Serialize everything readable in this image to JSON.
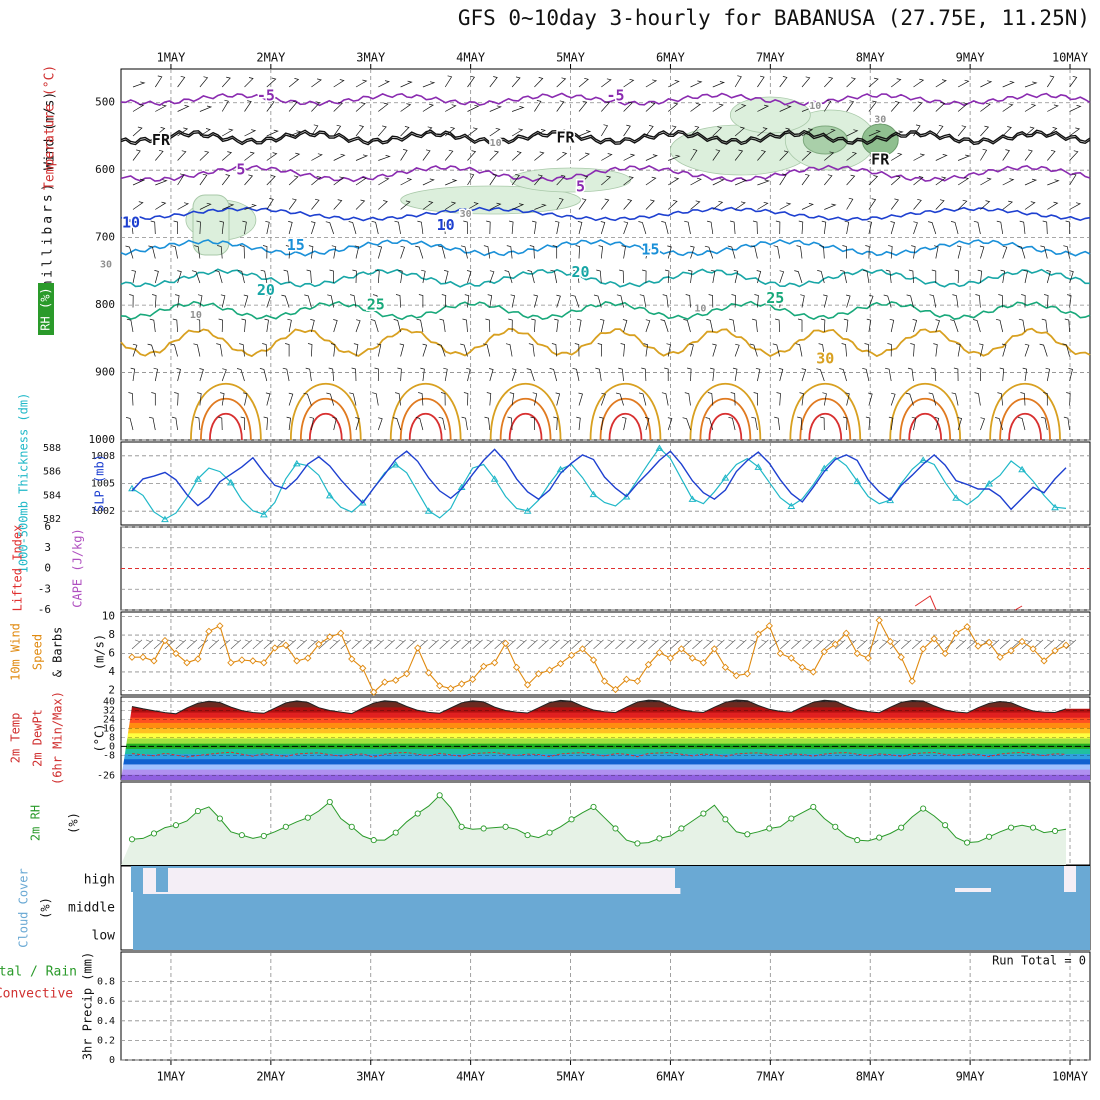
{
  "title": "GFS 0~10day 3-hourly for BABANUSA (27.75E, 11.25N)",
  "colors": {
    "temp_pos": "#d03030",
    "temp_neg": "#8a2bb0",
    "freezing": "#111111",
    "rh": "#2a9a2a",
    "slp": "#1e40d0",
    "thickness": "#20b8c8",
    "wind": "#e08a10",
    "cape": "#b050c0",
    "lifted": "#e03030",
    "cloud": "#6aa9d4",
    "grid": "#8a8a8a"
  },
  "chart_data": [
    {
      "type": "line",
      "name": "upper-air",
      "ylabel_rh": "RH (%)",
      "ylabel_temp": "Temperature (°C)",
      "ylabel_wind": "Wind (m/s)",
      "ylabel_units": "(millibars)",
      "yticks": [
        "500",
        "600",
        "700",
        "800",
        "900",
        "1000"
      ],
      "yrange": [
        450,
        1000
      ],
      "isotherm_labels": [
        {
          "text": "-5",
          "day": 1.95,
          "p": 490,
          "color": "#8a2bb0"
        },
        {
          "text": "-5",
          "day": 5.45,
          "p": 490,
          "color": "#8a2bb0"
        },
        {
          "text": "FR",
          "day": 0.9,
          "p": 556,
          "color": "#111111"
        },
        {
          "text": "FR",
          "day": 4.95,
          "p": 552,
          "color": "#111111"
        },
        {
          "text": "FR",
          "day": 8.1,
          "p": 585,
          "color": "#111111"
        },
        {
          "text": "5",
          "day": 1.7,
          "p": 600,
          "color": "#8a2bb0"
        },
        {
          "text": "5",
          "day": 5.1,
          "p": 625,
          "color": "#8a2bb0"
        },
        {
          "text": "10",
          "day": 0.6,
          "p": 678,
          "color": "#1e40d0"
        },
        {
          "text": "10",
          "day": 3.75,
          "p": 682,
          "color": "#1e40d0"
        },
        {
          "text": "15",
          "day": 2.25,
          "p": 712,
          "color": "#1a90d8"
        },
        {
          "text": "15",
          "day": 5.8,
          "p": 718,
          "color": "#1a90d8"
        },
        {
          "text": "20",
          "day": 1.95,
          "p": 778,
          "color": "#18a6a6"
        },
        {
          "text": "20",
          "day": 5.1,
          "p": 752,
          "color": "#18a6a6"
        },
        {
          "text": "25",
          "day": 3.05,
          "p": 800,
          "color": "#18a87a"
        },
        {
          "text": "25",
          "day": 7.05,
          "p": 790,
          "color": "#18a87a"
        },
        {
          "text": "30",
          "day": 7.55,
          "p": 880,
          "color": "#d8a020"
        },
        {
          "text": "10",
          "day": 1.25,
          "p": 815,
          "color": "#909090"
        },
        {
          "text": "10",
          "day": 6.3,
          "p": 805,
          "color": "#909090"
        },
        {
          "text": "30",
          "day": 0.35,
          "p": 740,
          "color": "#909090"
        },
        {
          "text": "30",
          "day": 3.95,
          "p": 665,
          "color": "#909090"
        },
        {
          "text": "30",
          "day": 8.1,
          "p": 525,
          "color": "#909090"
        },
        {
          "text": "10",
          "day": 7.45,
          "p": 505,
          "color": "#909090"
        },
        {
          "text": "10",
          "day": 4.25,
          "p": 560,
          "color": "#909090"
        }
      ]
    },
    {
      "type": "line",
      "name": "slp-thickness",
      "ylabel_thickness": "1000-500mb Thickness (dm)",
      "ylabel_slp": "SLP (mb)",
      "thickness_ticks": [
        "588",
        "586",
        "584",
        "582"
      ],
      "slp_ticks": [
        "1008",
        "1005",
        "1002"
      ],
      "thickness_range": [
        581.5,
        588.5
      ],
      "slp_range": [
        1000.5,
        1009.5
      ],
      "slp": [
        1004.2,
        1005.5,
        1005.8,
        1006.2,
        1005.4,
        1003.8,
        1002.6,
        1003.5,
        1005.2,
        1006.0,
        1006.8,
        1007.8,
        1006.2,
        1004.8,
        1004.4,
        1005.5,
        1007.1,
        1007.9,
        1006.9,
        1005.4,
        1004.1,
        1002.9,
        1004.5,
        1006.0,
        1007.6,
        1008.5,
        1007.4,
        1005.6,
        1004.2,
        1003.4,
        1004.4,
        1006.0,
        1007.5,
        1008.7,
        1007.4,
        1005.5,
        1004.1,
        1003.3,
        1004.3,
        1006.1,
        1007.2,
        1008.1,
        1007.6,
        1005.7,
        1004.5,
        1003.6,
        1005.0,
        1006.2,
        1007.5,
        1008.5,
        1007.1,
        1005.3,
        1004.0,
        1003.3,
        1004.3,
        1006.3,
        1007.5,
        1008.4,
        1007.2,
        1005.4,
        1003.9,
        1003.0,
        1004.6,
        1006.3,
        1007.6,
        1008.1,
        1007.5,
        1005.4,
        1004.1,
        1003.2,
        1004.8,
        1005.9,
        1007.1,
        1008.1,
        1007.0,
        1005.3,
        1004.9,
        1004.4,
        1004.4,
        1003.6,
        1002.2,
        1003.4,
        1004.6,
        1004.0,
        1005.5,
        1006.7
      ],
      "thickness": [
        584.6,
        584.0,
        582.6,
        582.0,
        582.5,
        583.8,
        585.4,
        586.3,
        586.0,
        585.1,
        583.6,
        582.7,
        582.4,
        583.4,
        585.4,
        586.7,
        586.5,
        585.7,
        584.0,
        583.0,
        582.6,
        583.4,
        584.6,
        585.9,
        586.6,
        585.9,
        584.3,
        582.7,
        582.1,
        582.9,
        584.7,
        586.3,
        586.6,
        585.4,
        583.9,
        582.9,
        582.7,
        583.6,
        585.0,
        586.2,
        586.6,
        585.5,
        584.1,
        583.4,
        583.1,
        583.9,
        585.3,
        586.7,
        588.0,
        587.1,
        585.4,
        583.7,
        583.3,
        584.3,
        585.5,
        586.6,
        587.1,
        586.4,
        585.1,
        583.8,
        583.1,
        583.7,
        584.9,
        586.3,
        587.2,
        586.5,
        585.2,
        583.9,
        583.3,
        583.6,
        585.0,
        586.2,
        587.0,
        586.6,
        585.1,
        583.8,
        583.2,
        583.9,
        585.0,
        585.7,
        586.9,
        586.2,
        585.2,
        584.0,
        583.0,
        582.9
      ]
    },
    {
      "type": "line",
      "name": "lifted-cape",
      "ylabel_lifted": "Lifted Index",
      "ylabel_cape": "CAPE (J/kg)",
      "yticks": [
        "6",
        "3",
        "0",
        "-3",
        "-6"
      ],
      "cape_trace_days": [
        8.45,
        8.6
      ],
      "cape_trace_days_2": [
        9.45,
        9.52
      ]
    },
    {
      "type": "line",
      "name": "10m-wind",
      "ylabel_wind": "10m Wind",
      "ylabel_speed": "Speed",
      "ylabel_barbs": "& Barbs",
      "ylabel_units": "(m/s)",
      "yticks": [
        "10",
        "8",
        "6",
        "4",
        "2"
      ],
      "yrange": [
        1.5,
        10.5
      ],
      "speed": [
        5.6,
        5.6,
        5.2,
        7.4,
        6.0,
        5.0,
        5.4,
        8.4,
        9.0,
        5.0,
        5.3,
        5.2,
        5.0,
        6.6,
        6.9,
        5.2,
        5.5,
        7.0,
        7.8,
        8.2,
        5.4,
        4.4,
        1.8,
        2.9,
        3.1,
        3.8,
        6.6,
        3.9,
        2.5,
        2.2,
        2.7,
        3.2,
        4.6,
        5.0,
        7.1,
        4.5,
        2.6,
        3.8,
        4.2,
        4.9,
        5.8,
        6.5,
        5.3,
        3.0,
        2.1,
        3.2,
        3.0,
        4.8,
        6.1,
        5.5,
        6.5,
        5.5,
        5.0,
        6.5,
        4.5,
        3.6,
        3.8,
        8.1,
        9.0,
        6.0,
        5.5,
        4.5,
        4.0,
        6.2,
        7.0,
        8.2,
        6.0,
        5.5,
        9.6,
        7.3,
        5.6,
        3.0,
        6.5,
        7.6,
        6.0,
        8.2,
        8.9,
        6.8,
        7.2,
        5.6,
        6.3,
        7.3,
        6.5,
        5.2,
        6.3,
        6.9
      ]
    },
    {
      "type": "area",
      "name": "2m-temp",
      "ylabel_temp": "2m Temp",
      "ylabel_dewpt": "2m DewPt",
      "ylabel_minmax": "(6hr Min/Max)",
      "ylabel_units": "(°C)",
      "yticks": [
        "40",
        "32",
        "24",
        "16",
        "8",
        "0",
        "-8",
        "-26"
      ],
      "yrange": [
        -30,
        44
      ],
      "temp": [
        35.5,
        33.5,
        31.8,
        30.1,
        29.0,
        34.2,
        38.5,
        40.2,
        39.1,
        35.0,
        31.9,
        30.2,
        29.5,
        34.0,
        38.7,
        40.5,
        39.2,
        34.5,
        32.0,
        30.5,
        29.2,
        34.3,
        38.6,
        40.7,
        39.8,
        35.5,
        32.1,
        30.3,
        29.6,
        34.2,
        38.8,
        40.6,
        39.6,
        35.0,
        32.0,
        30.5,
        29.7,
        34.4,
        39.0,
        41.0,
        40.2,
        35.8,
        32.4,
        30.9,
        30.1,
        35.0,
        39.5,
        41.2,
        40.5,
        36.2,
        32.6,
        31.0,
        30.2,
        34.9,
        39.3,
        41.3,
        40.6,
        36.4,
        33.0,
        31.2,
        30.4,
        35.1,
        39.4,
        41.1,
        40.3,
        36.0,
        32.5,
        31.0,
        30.0,
        34.8,
        39.2,
        40.9,
        40.4,
        36.1,
        32.4,
        30.6,
        29.8,
        34.5,
        38.4,
        40.0,
        38.9,
        34.8,
        31.5,
        30.5,
        30.2,
        33.5
      ],
      "dewpt": [
        -6.5,
        -7.5,
        -8.4,
        -6.2,
        -7.8,
        -9.5,
        -8.2,
        -7.0,
        -6.0,
        -5.2,
        -7.0,
        -8.8,
        -6.5,
        -7.8,
        -9.0,
        -6.8,
        -6.2,
        -5.8,
        -7.4,
        -8.7,
        -7.2,
        -6.8,
        -9.6,
        -7.0,
        -5.8,
        -5.5,
        -7.1,
        -8.4,
        -6.2,
        -7.6,
        -8.9,
        -6.5,
        -5.9,
        -5.4,
        -7.0,
        -8.2,
        -6.9,
        -7.3,
        -9.1,
        -6.7,
        -6.0,
        -5.6,
        -7.2,
        -8.6,
        -6.5,
        -7.0,
        -9.2,
        -6.4,
        -5.9,
        -5.6,
        -7.0,
        -8.5,
        -6.8,
        -7.5,
        -9.0,
        -6.7,
        -6.1,
        -5.8,
        -7.3,
        -8.3,
        -6.6,
        -7.2,
        -8.8,
        -6.9,
        -5.9,
        -5.6,
        -7.0,
        -8.6,
        -6.7,
        -7.4,
        -9.0,
        -6.6,
        -5.8,
        -5.5,
        -7.2,
        -8.5,
        -6.6,
        -7.3,
        -9.1,
        -6.8,
        -5.9,
        -5.4,
        -7.0,
        -8.2,
        -6.6,
        -7.2
      ],
      "color_bands": [
        "#3a2a2a",
        "#6b2a20",
        "#b01010",
        "#e02020",
        "#ff5020",
        "#ff8c10",
        "#ffc020",
        "#ffff40",
        "#a0e040",
        "#20b020",
        "#20c0a0",
        "#30a0e0",
        "#1060d0",
        "#a0c0ff",
        "#b090f0",
        "#9060e0"
      ]
    },
    {
      "type": "area",
      "name": "2m-rh",
      "ylabel": "2m RH",
      "ylabel_units": "(%)",
      "yrange": [
        0,
        100
      ],
      "values": [
        31,
        32,
        38,
        45,
        48,
        53,
        65,
        70,
        56,
        40,
        36,
        32,
        35,
        40,
        46,
        52,
        57,
        65,
        76,
        56,
        46,
        35,
        30,
        30,
        39,
        52,
        62,
        71,
        84,
        69,
        46,
        43,
        44,
        45,
        46,
        43,
        36,
        33,
        39,
        46,
        55,
        63,
        70,
        57,
        44,
        30,
        26,
        27,
        32,
        35,
        44,
        53,
        62,
        72,
        55,
        40,
        37,
        40,
        44,
        46,
        56,
        63,
        70,
        56,
        46,
        35,
        30,
        29,
        33,
        38,
        45,
        58,
        68,
        59,
        48,
        33,
        27,
        28,
        34,
        40,
        45,
        48,
        45,
        39,
        41,
        43
      ]
    },
    {
      "type": "area",
      "name": "cloud-cover",
      "ylabel": "Cloud Cover",
      "ylabel_units": "(%)",
      "levels": [
        "high",
        "middle",
        "low"
      ],
      "note": "Low and middle layers fully covered; high layer mostly clear days 1–6, overcast from 6 May onward."
    },
    {
      "type": "bar",
      "name": "precip",
      "ylabel_total": "Total / Rain",
      "ylabel_conv": "Convective",
      "ylabel_precip": "3hr Precip (mm)",
      "yticks": [
        "0.8",
        "0.6",
        "0.4",
        "0.2",
        "0"
      ],
      "yrange": [
        0,
        1
      ],
      "run_total": "Run Total = 0",
      "values": []
    }
  ],
  "xaxis": {
    "days": [
      "1MAY",
      "2MAY",
      "3MAY",
      "4MAY",
      "5MAY",
      "6MAY",
      "7MAY",
      "8MAY",
      "9MAY",
      "10MAY"
    ],
    "start_offset_days": -0.5,
    "end_offset_days": 9.2
  }
}
